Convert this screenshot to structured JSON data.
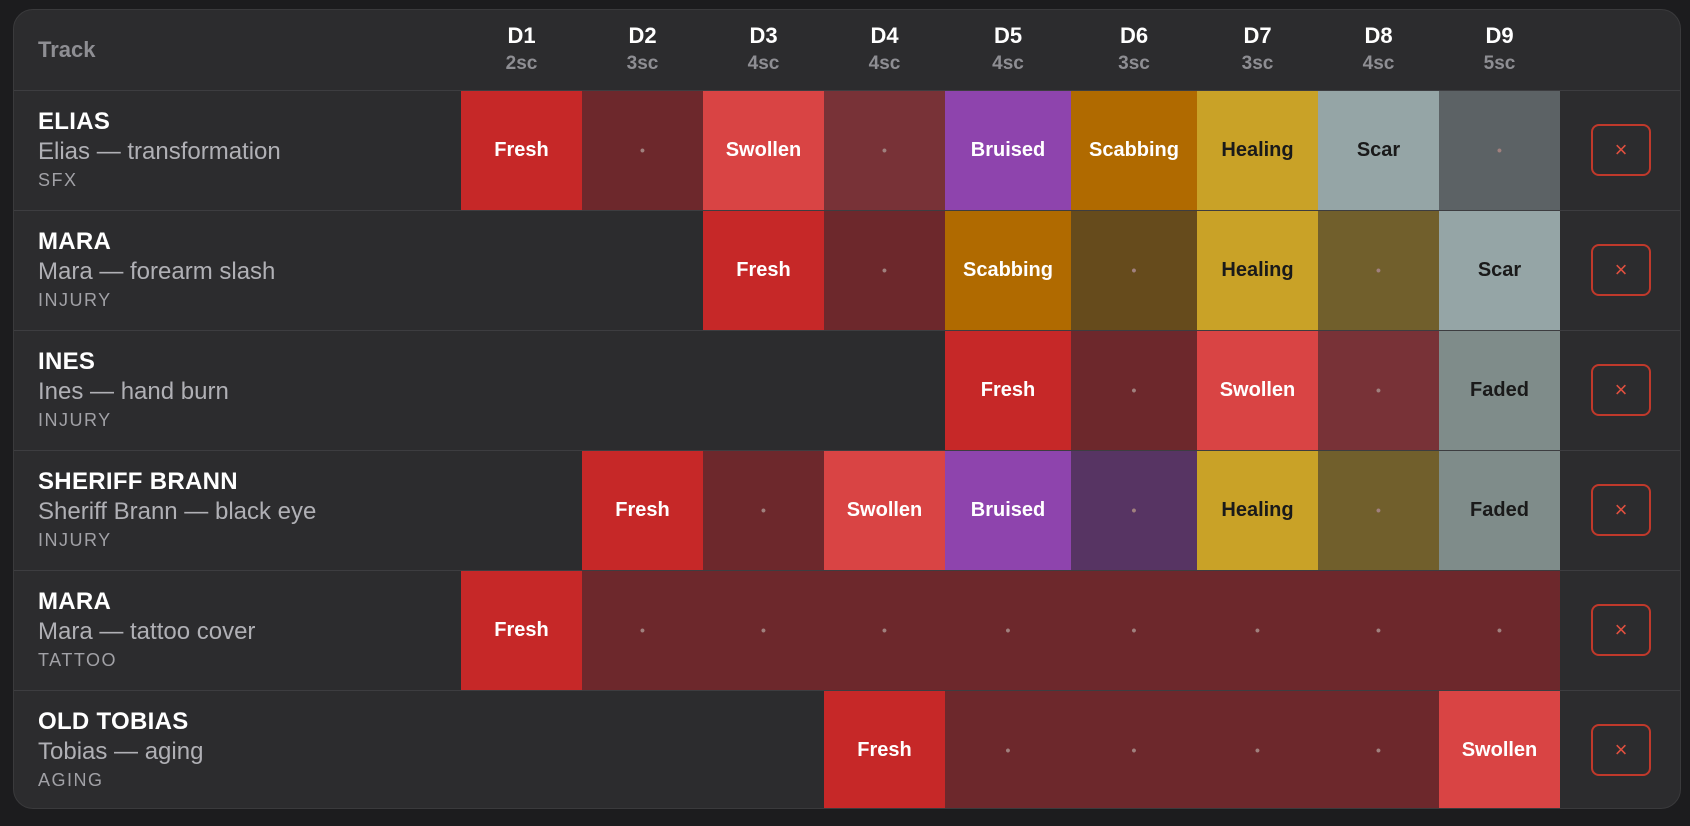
{
  "header": {
    "track_label": "Track",
    "days": [
      {
        "label": "D1",
        "scenes": "2sc"
      },
      {
        "label": "D2",
        "scenes": "3sc"
      },
      {
        "label": "D3",
        "scenes": "4sc"
      },
      {
        "label": "D4",
        "scenes": "4sc"
      },
      {
        "label": "D5",
        "scenes": "4sc"
      },
      {
        "label": "D6",
        "scenes": "3sc"
      },
      {
        "label": "D7",
        "scenes": "3sc"
      },
      {
        "label": "D8",
        "scenes": "4sc"
      },
      {
        "label": "D9",
        "scenes": "5sc"
      }
    ]
  },
  "remove_icon": "×",
  "dot_glyph": "•",
  "colors": {
    "background": "#1c1c1e",
    "card": "#2c2c2e",
    "fresh": "#c62828",
    "fresh_dim": "#6d282c",
    "swollen": "#d94444",
    "swollen_dim": "#783237",
    "bruised": "#8e44ad",
    "bruised_dim": "#573463",
    "scabbing": "#b06a00",
    "scabbing_dim": "#664b1c",
    "healing": "#c9a227",
    "healing_dim": "#715f2c",
    "scar": "#95a5a6",
    "scar_dim": "#5c6265",
    "faded": "#7f8c8a",
    "remove_accent": "#e0503f"
  },
  "tracks": [
    {
      "name": "ELIAS",
      "desc": "Elias — transformation",
      "category": "SFX",
      "cells": [
        {
          "label": "Fresh",
          "state": "fresh"
        },
        {
          "label": "",
          "state": "fresh_dim"
        },
        {
          "label": "Swollen",
          "state": "swollen"
        },
        {
          "label": "",
          "state": "swollen_dim"
        },
        {
          "label": "Bruised",
          "state": "bruised"
        },
        {
          "label": "Scabbing",
          "state": "scabbing"
        },
        {
          "label": "Healing",
          "state": "healing"
        },
        {
          "label": "Scar",
          "state": "scar"
        },
        {
          "label": "",
          "state": "scar_dim"
        }
      ]
    },
    {
      "name": "MARA",
      "desc": "Mara — forearm slash",
      "category": "INJURY",
      "cells": [
        null,
        null,
        {
          "label": "Fresh",
          "state": "fresh"
        },
        {
          "label": "",
          "state": "fresh_dim"
        },
        {
          "label": "Scabbing",
          "state": "scabbing"
        },
        {
          "label": "",
          "state": "scabbing_dim"
        },
        {
          "label": "Healing",
          "state": "healing"
        },
        {
          "label": "",
          "state": "healing_dim"
        },
        {
          "label": "Scar",
          "state": "scar"
        }
      ]
    },
    {
      "name": "INES",
      "desc": "Ines — hand burn",
      "category": "INJURY",
      "cells": [
        null,
        null,
        null,
        null,
        {
          "label": "Fresh",
          "state": "fresh"
        },
        {
          "label": "",
          "state": "fresh_dim"
        },
        {
          "label": "Swollen",
          "state": "swollen"
        },
        {
          "label": "",
          "state": "swollen_dim"
        },
        {
          "label": "Faded",
          "state": "faded"
        }
      ]
    },
    {
      "name": "SHERIFF BRANN",
      "desc": "Sheriff Brann — black eye",
      "category": "INJURY",
      "cells": [
        null,
        {
          "label": "Fresh",
          "state": "fresh"
        },
        {
          "label": "",
          "state": "fresh_dim"
        },
        {
          "label": "Swollen",
          "state": "swollen"
        },
        {
          "label": "Bruised",
          "state": "bruised"
        },
        {
          "label": "",
          "state": "bruised_dim"
        },
        {
          "label": "Healing",
          "state": "healing"
        },
        {
          "label": "",
          "state": "healing_dim"
        },
        {
          "label": "Faded",
          "state": "faded"
        }
      ]
    },
    {
      "name": "MARA",
      "desc": "Mara — tattoo cover",
      "category": "TATTOO",
      "cells": [
        {
          "label": "Fresh",
          "state": "fresh"
        },
        {
          "label": "",
          "state": "fresh_dim"
        },
        {
          "label": "",
          "state": "fresh_dim"
        },
        {
          "label": "",
          "state": "fresh_dim"
        },
        {
          "label": "",
          "state": "fresh_dim"
        },
        {
          "label": "",
          "state": "fresh_dim"
        },
        {
          "label": "",
          "state": "fresh_dim"
        },
        {
          "label": "",
          "state": "fresh_dim"
        },
        {
          "label": "",
          "state": "fresh_dim"
        }
      ]
    },
    {
      "name": "OLD TOBIAS",
      "desc": "Tobias — aging",
      "category": "AGING",
      "cells": [
        null,
        null,
        null,
        {
          "label": "Fresh",
          "state": "fresh"
        },
        {
          "label": "",
          "state": "fresh_dim"
        },
        {
          "label": "",
          "state": "fresh_dim"
        },
        {
          "label": "",
          "state": "fresh_dim"
        },
        {
          "label": "",
          "state": "fresh_dim"
        },
        {
          "label": "Swollen",
          "state": "swollen"
        }
      ]
    }
  ]
}
